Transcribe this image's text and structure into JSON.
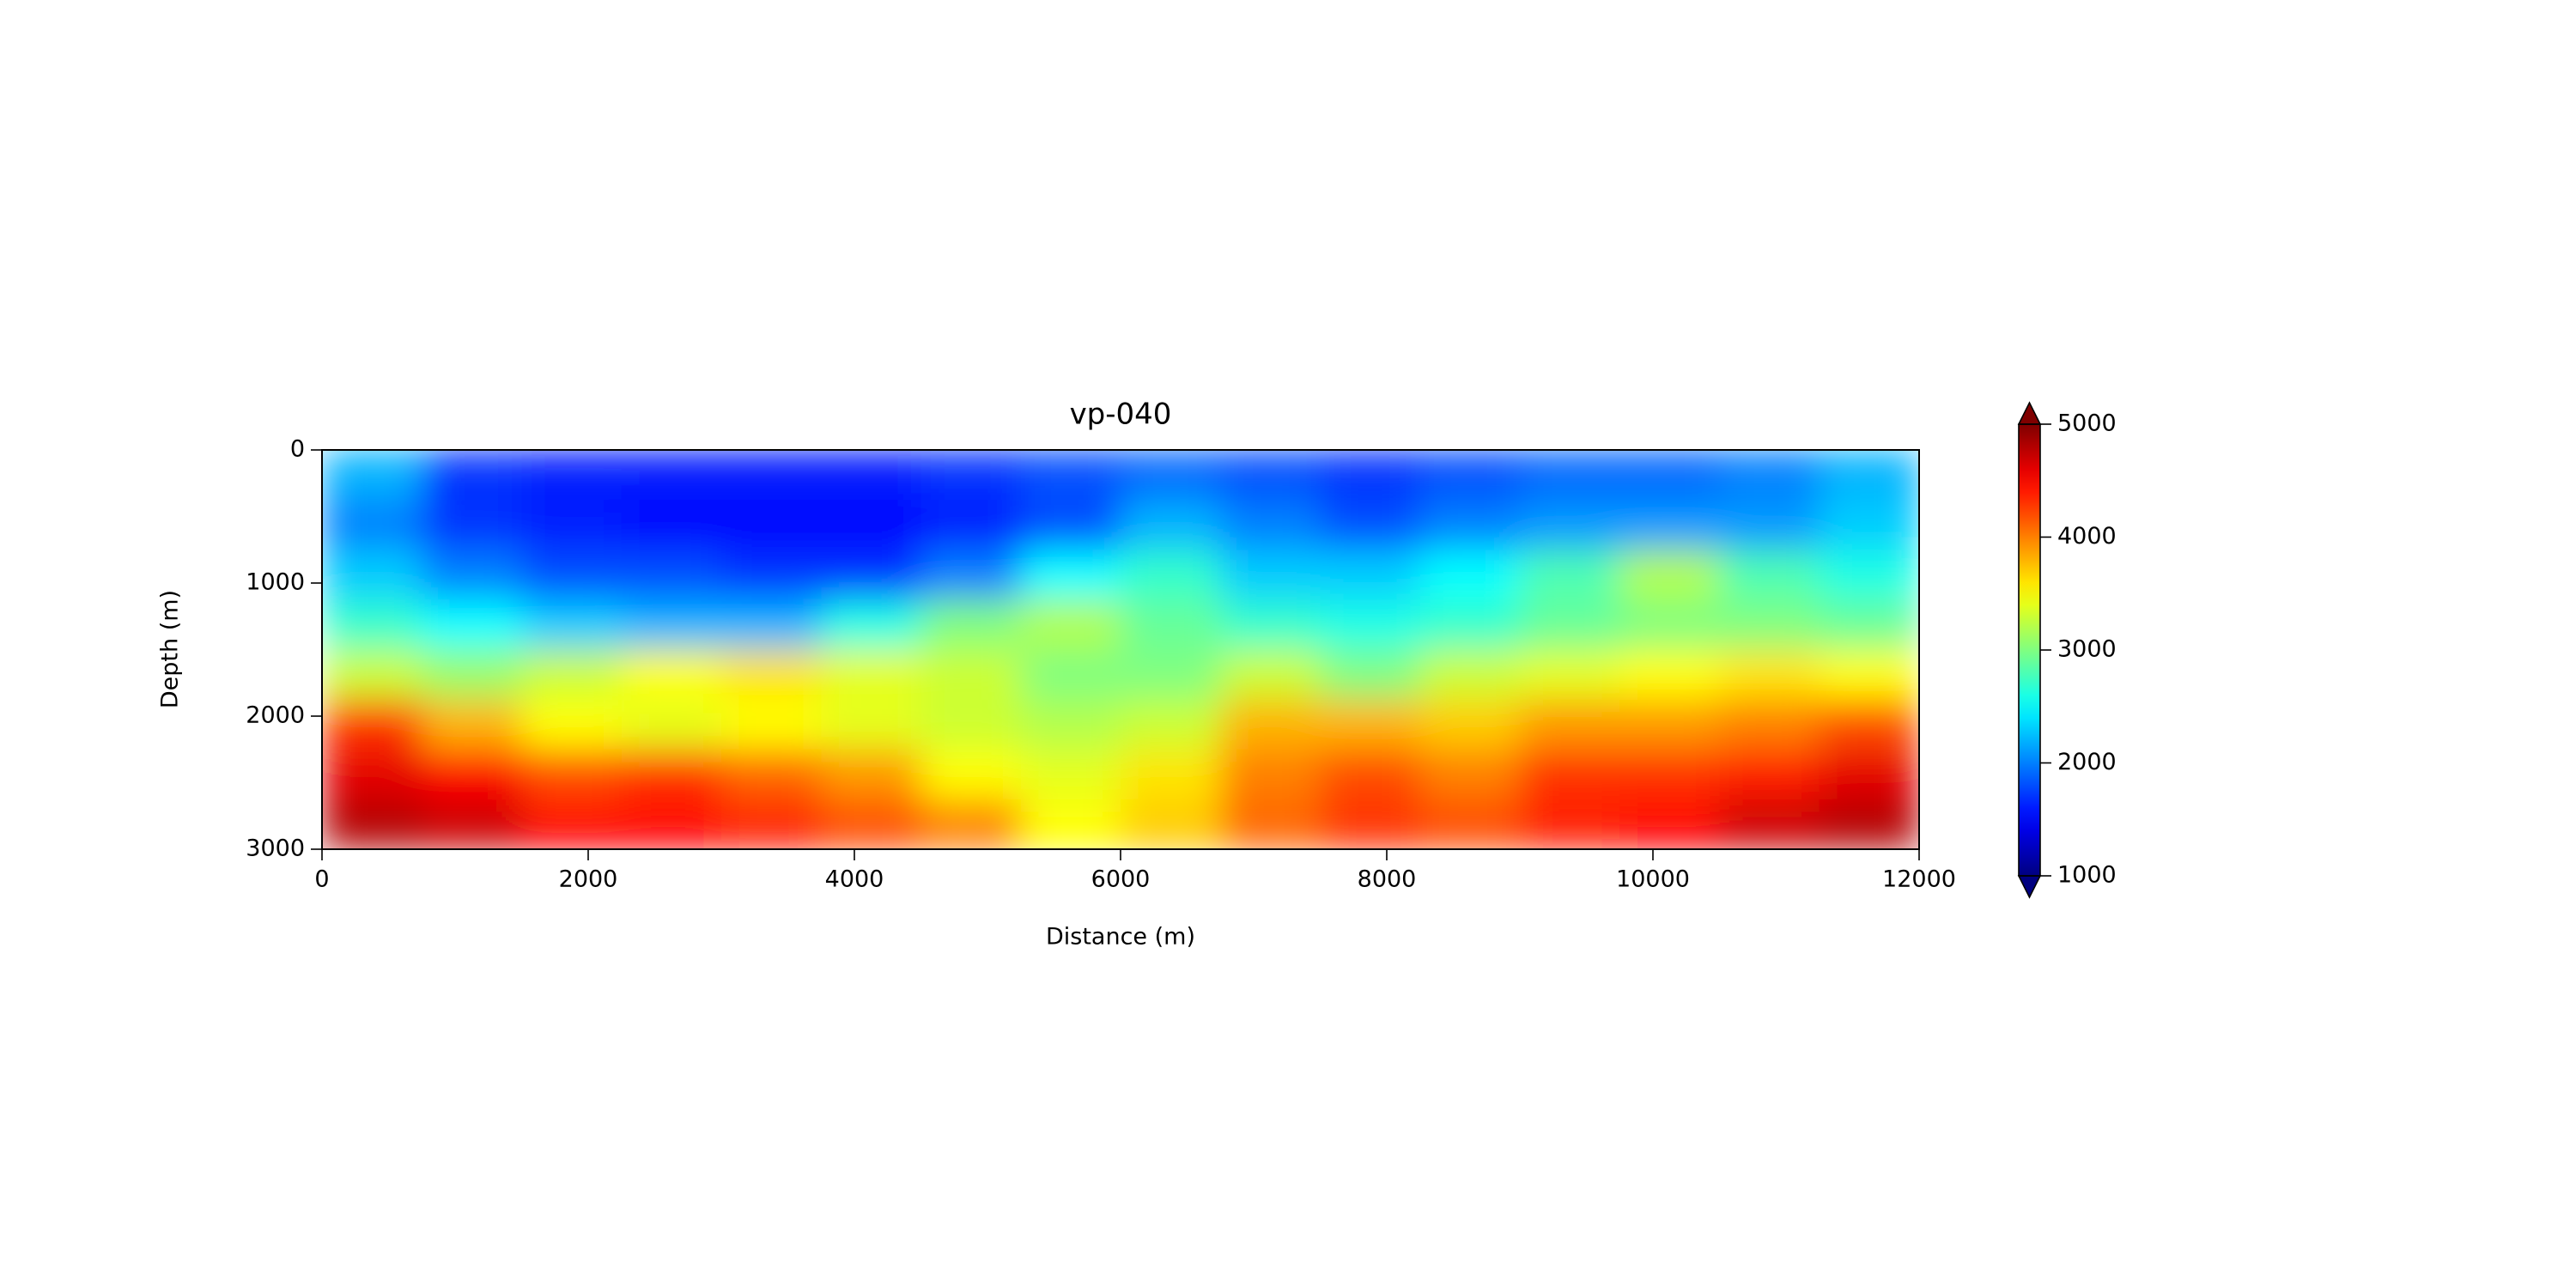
{
  "chart_data": {
    "type": "heatmap",
    "title": "vp-040",
    "x_label": "Distance (m)",
    "y_label": "Depth (m)",
    "xlim": [
      0,
      12000
    ],
    "ylim": [
      3000,
      0
    ],
    "xticks": [
      0,
      2000,
      4000,
      6000,
      8000,
      10000,
      12000
    ],
    "yticks": [
      0,
      1000,
      2000,
      3000
    ],
    "colormap": "jet",
    "zlim": [
      1000,
      5000
    ],
    "colorbar_ticks": [
      1000,
      2000,
      3000,
      4000,
      5000
    ],
    "colorbar_extend": "both",
    "z": [
      [
        2200,
        1700,
        1600,
        1600,
        1600,
        1600,
        1700,
        1800,
        1900,
        1800,
        1700,
        1800,
        1900,
        1900,
        2000,
        2200
      ],
      [
        2000,
        1700,
        1600,
        1500,
        1500,
        1500,
        1600,
        1800,
        2200,
        2000,
        1800,
        2000,
        2100,
        2100,
        2100,
        2300
      ],
      [
        2300,
        2000,
        1800,
        1800,
        1700,
        1700,
        2000,
        2500,
        2700,
        2300,
        2300,
        2500,
        2800,
        3200,
        2800,
        2600
      ],
      [
        2700,
        2500,
        2300,
        2200,
        2200,
        2600,
        3000,
        3200,
        2900,
        2700,
        2600,
        2700,
        2900,
        3000,
        3000,
        2900
      ],
      [
        3300,
        3100,
        3300,
        3500,
        3600,
        3400,
        3300,
        3000,
        3000,
        3300,
        3000,
        3300,
        3400,
        3500,
        3600,
        3500
      ],
      [
        4300,
        3800,
        3500,
        3400,
        3500,
        3400,
        3300,
        3200,
        3300,
        3800,
        3800,
        3700,
        3900,
        3900,
        4000,
        4200
      ],
      [
        4600,
        4500,
        4200,
        4300,
        4100,
        3900,
        3500,
        3400,
        3600,
        4000,
        4200,
        4000,
        4300,
        4300,
        4400,
        4600
      ],
      [
        4800,
        4700,
        4500,
        4500,
        4400,
        4200,
        4000,
        3500,
        3700,
        4100,
        4300,
        4200,
        4400,
        4500,
        4700,
        4800
      ]
    ]
  }
}
